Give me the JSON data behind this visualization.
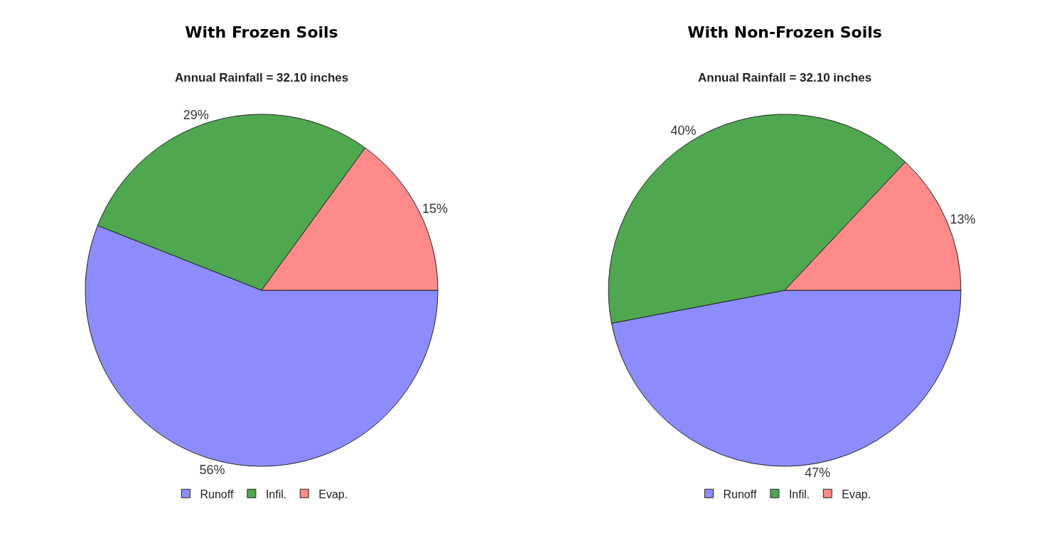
{
  "chart_data": [
    {
      "type": "pie",
      "title": "With Frozen Soils",
      "subtitle": "Annual Rainfall = 32.10 inches",
      "categories": [
        "Runoff",
        "Infil.",
        "Evap."
      ],
      "values": [
        56,
        29,
        15
      ],
      "colors": [
        "#8c8cff",
        "#4fa84f",
        "#ff8a8a"
      ],
      "value_labels": [
        "56%",
        "29%",
        "15%"
      ],
      "legend": "bottom"
    },
    {
      "type": "pie",
      "title": "With Non-Frozen Soils",
      "subtitle": "Annual Rainfall = 32.10 inches",
      "categories": [
        "Runoff",
        "Infil.",
        "Evap."
      ],
      "values": [
        47,
        40,
        13
      ],
      "colors": [
        "#8c8cff",
        "#4fa84f",
        "#ff8a8a"
      ],
      "value_labels": [
        "47%",
        "40%",
        "13%"
      ],
      "legend": "bottom"
    }
  ]
}
